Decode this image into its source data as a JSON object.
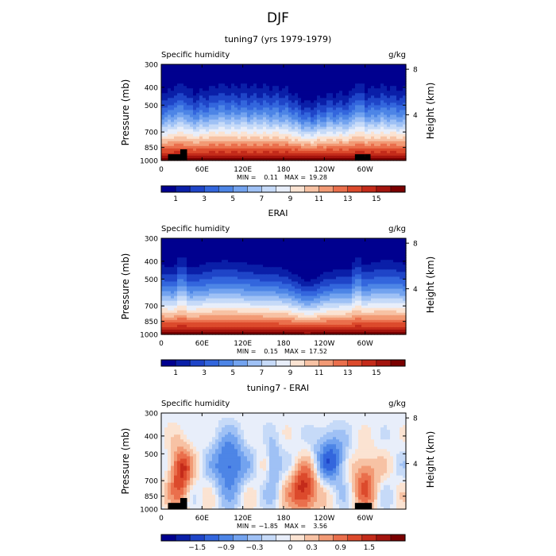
{
  "figure_title": "DJF",
  "palettes": {
    "abs": [
      "#00008f",
      "#0a1fa8",
      "#1f45c8",
      "#3366dd",
      "#4d85e6",
      "#73a3ef",
      "#9fc1f5",
      "#c6daf8",
      "#e8eefa",
      "#fbe3d2",
      "#f7c2a4",
      "#f29a75",
      "#ea6f4c",
      "#dc4a2c",
      "#c42b1a",
      "#a3140e",
      "#7a0000"
    ],
    "diff": [
      "#00008f",
      "#0a1fa8",
      "#1f45c8",
      "#3366dd",
      "#4d85e6",
      "#73a3ef",
      "#9fc1f5",
      "#c6daf8",
      "#e8eefa",
      "#fbe3d2",
      "#f7c2a4",
      "#f29a75",
      "#ea6f4c",
      "#dc4a2c",
      "#c42b1a",
      "#a3140e",
      "#7a0000"
    ]
  },
  "chart_data": [
    {
      "type": "heatmap",
      "title": "tuning7 (yrs 1979-1979)",
      "left_label": "Specific humidity",
      "right_label": "g/kg",
      "ylabel": "Pressure (mb)",
      "y2label": "Height (km)",
      "y_ticks": [
        "300",
        "400",
        "500",
        "700",
        "850",
        "1000"
      ],
      "y_tick_values": [
        300,
        400,
        500,
        700,
        850,
        1000
      ],
      "y2_ticks": [
        "8",
        "4"
      ],
      "y2_tick_values": [
        8,
        4
      ],
      "x_ticks": [
        "0",
        "60E",
        "120E",
        "180",
        "120W",
        "60W"
      ],
      "x_tick_values": [
        0,
        60,
        120,
        180,
        240,
        300
      ],
      "xlim": [
        0,
        360
      ],
      "ylim": [
        1000,
        300
      ],
      "stats_min_label": "MIN =",
      "stats_min": "0.11",
      "stats_max_label": "MAX =",
      "stats_max": "19.28",
      "colorbar_labels": [
        "1",
        "3",
        "5",
        "7",
        "9",
        "11",
        "13",
        "15"
      ],
      "colorbar_values": [
        1,
        3,
        5,
        7,
        9,
        11,
        13,
        15
      ],
      "kind": "abs",
      "variant": "model",
      "topography": [
        [
          10,
          38,
          925
        ],
        [
          28,
          38,
          870
        ],
        [
          285,
          300,
          925
        ],
        [
          300,
          308,
          925
        ]
      ]
    },
    {
      "type": "heatmap",
      "title": "ERAI",
      "left_label": "Specific humidity",
      "right_label": "g/kg",
      "ylabel": "Pressure (mb)",
      "y2label": "Height (km)",
      "y_ticks": [
        "300",
        "400",
        "500",
        "700",
        "850",
        "1000"
      ],
      "y_tick_values": [
        300,
        400,
        500,
        700,
        850,
        1000
      ],
      "y2_ticks": [
        "8",
        "4"
      ],
      "y2_tick_values": [
        8,
        4
      ],
      "x_ticks": [
        "0",
        "60E",
        "120E",
        "180",
        "120W",
        "60W"
      ],
      "x_tick_values": [
        0,
        60,
        120,
        180,
        240,
        300
      ],
      "xlim": [
        0,
        360
      ],
      "ylim": [
        1000,
        300
      ],
      "stats_min_label": "MIN =",
      "stats_min": "0.15",
      "stats_max_label": "MAX =",
      "stats_max": "17.52",
      "colorbar_labels": [
        "1",
        "3",
        "5",
        "7",
        "9",
        "11",
        "13",
        "15"
      ],
      "colorbar_values": [
        1,
        3,
        5,
        7,
        9,
        11,
        13,
        15
      ],
      "kind": "abs",
      "variant": "erai",
      "topography": []
    },
    {
      "type": "heatmap",
      "title": "tuning7 - ERAI",
      "left_label": "Specific humidity",
      "right_label": "g/kg",
      "ylabel": "Pressure (mb)",
      "y2label": "Height (km)",
      "y_ticks": [
        "300",
        "400",
        "500",
        "700",
        "850",
        "1000"
      ],
      "y_tick_values": [
        300,
        400,
        500,
        700,
        850,
        1000
      ],
      "y2_ticks": [
        "8",
        "4"
      ],
      "y2_tick_values": [
        8,
        4
      ],
      "x_ticks": [
        "0",
        "60E",
        "120E",
        "180",
        "120W",
        "60W"
      ],
      "x_tick_values": [
        0,
        60,
        120,
        180,
        240,
        300
      ],
      "xlim": [
        0,
        360
      ],
      "ylim": [
        1000,
        300
      ],
      "stats_min_label": "MIN =",
      "stats_min": "−1.85",
      "stats_max_label": "MAX =",
      "stats_max": "3.56",
      "colorbar_labels": [
        "−1.5",
        "−0.9",
        "−0.3",
        "0",
        "0.3",
        "0.9",
        "1.5"
      ],
      "colorbar_values": [
        -1.5,
        -0.9,
        -0.3,
        0,
        0.3,
        0.9,
        1.5
      ],
      "kind": "diff",
      "variant": "diff",
      "topography": [
        [
          10,
          38,
          925
        ],
        [
          28,
          38,
          870
        ],
        [
          285,
          310,
          925
        ]
      ]
    }
  ]
}
